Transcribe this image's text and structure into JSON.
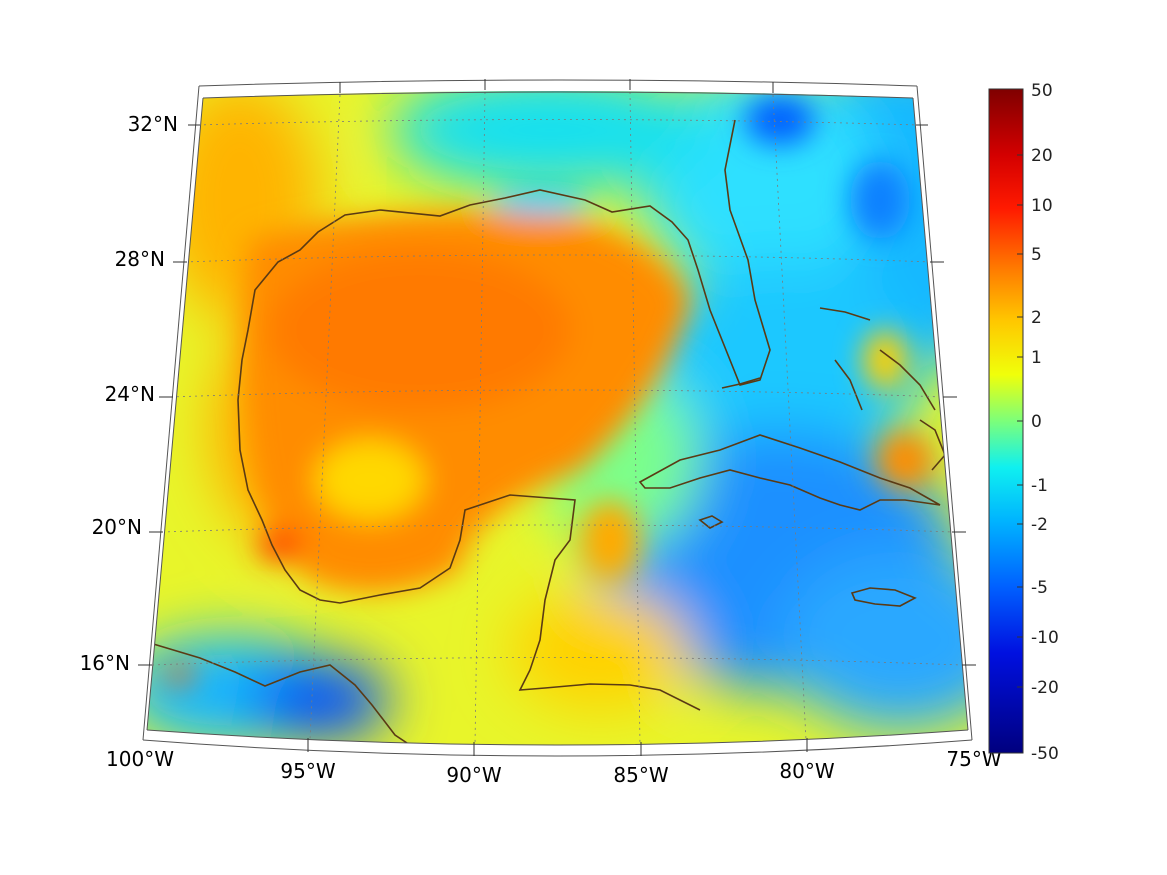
{
  "map": {
    "lon_ticks": [
      "100°W",
      "95°W",
      "90°W",
      "85°W",
      "80°W",
      "75°W"
    ],
    "lat_ticks": [
      "32°N",
      "28°N",
      "24°N",
      "20°N",
      "16°N"
    ],
    "extent": {
      "lon_min": -100,
      "lon_max": -75,
      "lat_min": 14,
      "lat_max": 33
    }
  },
  "colorbar": {
    "labels": [
      "50",
      "20",
      "10",
      "5",
      "2",
      "1",
      "0",
      "-1",
      "-2",
      "-5",
      "-10",
      "-20",
      "-50"
    ],
    "colormap": "jet",
    "scale": "symmetric-log"
  },
  "colors": {
    "coastline": "#5a3a14",
    "grid": "#7a7a7a",
    "frame": "#555555"
  }
}
